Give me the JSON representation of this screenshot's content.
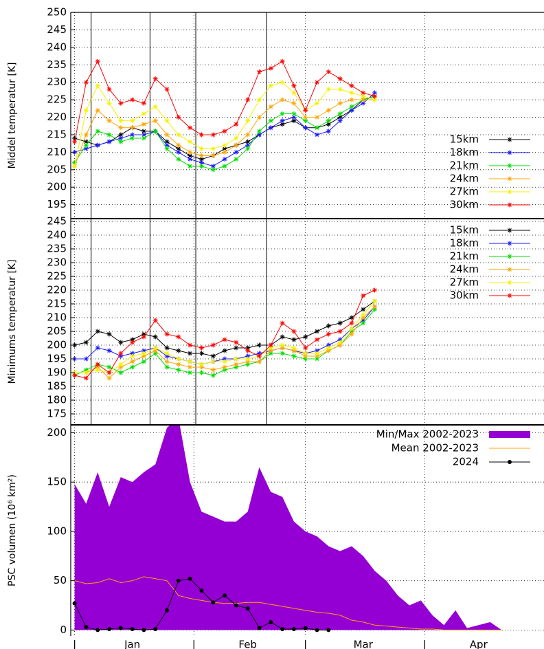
{
  "chart_data": [
    {
      "type": "line",
      "y_label": "Middel temperatur [K]",
      "xlim": [
        -1,
        122
      ],
      "xgrid": [
        0,
        31,
        60,
        91
      ],
      "vlines": [
        4.3,
        19.6,
        31.5,
        49.9
      ],
      "ylim": [
        191,
        250
      ],
      "yticks": [
        195,
        200,
        205,
        210,
        215,
        220,
        225,
        230,
        235,
        240,
        245,
        250
      ],
      "grid": true,
      "legend": "lower right",
      "x": [
        0,
        3,
        6,
        9,
        12,
        15,
        18,
        21,
        24,
        27,
        30,
        33,
        36,
        39,
        42,
        45,
        48,
        51,
        54,
        57,
        60,
        63,
        66,
        69,
        72,
        75,
        78
      ],
      "series": [
        {
          "name": "15km",
          "color": "#000000",
          "values": [
            214,
            213,
            212,
            213,
            215,
            217,
            216,
            216,
            213,
            211,
            209,
            208,
            209,
            211,
            212,
            213,
            215,
            217,
            218,
            219,
            217,
            217,
            218,
            220,
            222,
            225,
            226
          ]
        },
        {
          "name": "18km",
          "color": "#1a1aff",
          "values": [
            210,
            211,
            212,
            213,
            214,
            215,
            215,
            216,
            212,
            210,
            208,
            207,
            206,
            208,
            210,
            212,
            215,
            217,
            219,
            220,
            217,
            215,
            216,
            219,
            222,
            224,
            227
          ]
        },
        {
          "name": "21km",
          "color": "#00dd00",
          "values": [
            207,
            212,
            216,
            215,
            213,
            214,
            214,
            216,
            211,
            208,
            206,
            206,
            205,
            206,
            208,
            211,
            216,
            219,
            221,
            221,
            219,
            217,
            219,
            221,
            223,
            225,
            226
          ]
        },
        {
          "name": "24km",
          "color": "#ffa500",
          "values": [
            206,
            215,
            222,
            219,
            217,
            217,
            218,
            219,
            215,
            212,
            210,
            209,
            209,
            210,
            212,
            215,
            220,
            223,
            225,
            224,
            220,
            220,
            222,
            224,
            225,
            225,
            225
          ]
        },
        {
          "name": "27km",
          "color": "#f2f200",
          "values": [
            206,
            222,
            229,
            224,
            219,
            219,
            221,
            223,
            219,
            215,
            213,
            211,
            211,
            212,
            214,
            219,
            225,
            229,
            230,
            227,
            222,
            224,
            228,
            228,
            227,
            226,
            225
          ]
        },
        {
          "name": "30km",
          "color": "#ff0000",
          "values": [
            213,
            230,
            236,
            228,
            224,
            225,
            224,
            231,
            228,
            220,
            217,
            215,
            215,
            216,
            218,
            225,
            233,
            234,
            236,
            229,
            222,
            230,
            233,
            231,
            229,
            227,
            226
          ]
        }
      ]
    },
    {
      "type": "line",
      "y_label": "Minimums temperatur [K]",
      "xlim": [
        -1,
        122
      ],
      "xgrid": [
        0,
        31,
        60,
        91
      ],
      "vlines": [
        4.3,
        19.6,
        31.5,
        49.9
      ],
      "ylim": [
        171,
        246
      ],
      "yticks": [
        175,
        180,
        185,
        190,
        195,
        200,
        205,
        210,
        215,
        220,
        225,
        230,
        235,
        240,
        245
      ],
      "grid": true,
      "legend": "upper right",
      "x": [
        0,
        3,
        6,
        9,
        12,
        15,
        18,
        21,
        24,
        27,
        30,
        33,
        36,
        39,
        42,
        45,
        48,
        51,
        54,
        57,
        60,
        63,
        66,
        69,
        72,
        75,
        78
      ],
      "series": [
        {
          "name": "15km",
          "color": "#000000",
          "values": [
            200,
            201,
            205,
            204,
            201,
            202,
            204,
            203,
            199,
            198,
            197,
            197,
            196,
            198,
            199,
            199,
            200,
            200,
            203,
            202,
            203,
            205,
            207,
            208,
            210,
            213,
            216
          ]
        },
        {
          "name": "18km",
          "color": "#1a1aff",
          "values": [
            195,
            195,
            199,
            198,
            196,
            197,
            198,
            199,
            196,
            195,
            194,
            193,
            194,
            195,
            195,
            196,
            197,
            198,
            199,
            198,
            197,
            198,
            200,
            202,
            206,
            209,
            214
          ]
        },
        {
          "name": "21km",
          "color": "#00dd00",
          "values": [
            189,
            191,
            193,
            192,
            190,
            192,
            194,
            197,
            192,
            191,
            190,
            190,
            189,
            191,
            192,
            193,
            194,
            197,
            197,
            196,
            195,
            195,
            198,
            200,
            205,
            208,
            213
          ]
        },
        {
          "name": "24km",
          "color": "#ffa500",
          "values": [
            190,
            190,
            192,
            188,
            192,
            194,
            196,
            198,
            194,
            193,
            192,
            192,
            191,
            192,
            193,
            194,
            194,
            198,
            199,
            198,
            196,
            196,
            198,
            200,
            204,
            210,
            214
          ]
        },
        {
          "name": "27km",
          "color": "#f2f200",
          "values": [
            190,
            190,
            191,
            190,
            193,
            196,
            197,
            199,
            197,
            195,
            194,
            193,
            194,
            194,
            195,
            195,
            196,
            199,
            200,
            199,
            197,
            197,
            199,
            201,
            206,
            211,
            216
          ]
        },
        {
          "name": "30km",
          "color": "#ff0000",
          "values": [
            189,
            188,
            193,
            190,
            197,
            201,
            203,
            209,
            204,
            203,
            200,
            199,
            200,
            202,
            201,
            198,
            196,
            200,
            208,
            205,
            199,
            202,
            204,
            205,
            208,
            218,
            220
          ]
        }
      ]
    },
    {
      "type": "area",
      "y_label": "PSC volumen (10⁶ km²)",
      "xlim": [
        -1,
        122
      ],
      "xticks": [
        {
          "value": 0,
          "label": "|"
        },
        {
          "value": 31,
          "label": "|"
        },
        {
          "value": 60,
          "label": "|"
        },
        {
          "value": 91,
          "label": "|"
        }
      ],
      "xlabels": [
        {
          "value": 15,
          "label": "Jan"
        },
        {
          "value": 45,
          "label": "Feb"
        },
        {
          "value": 75,
          "label": "Mar"
        },
        {
          "value": 105,
          "label": "Apr"
        }
      ],
      "ylim": [
        -6,
        208
      ],
      "yticks": [
        0,
        50,
        100,
        150,
        200
      ],
      "grid": true,
      "legend": "upper right",
      "series": [
        {
          "name": "Min/Max 2002-2023",
          "type": "band",
          "color": "#9400d3",
          "x": [
            0,
            3,
            6,
            9,
            12,
            15,
            18,
            21,
            24,
            27,
            30,
            33,
            36,
            39,
            42,
            45,
            48,
            51,
            54,
            57,
            60,
            63,
            66,
            69,
            72,
            75,
            78,
            81,
            84,
            87,
            90,
            93,
            96,
            99,
            102,
            105,
            108,
            111
          ],
          "low": [
            0,
            0,
            0,
            0,
            0,
            0,
            0,
            0,
            0,
            0,
            0,
            0,
            0,
            0,
            0,
            0,
            0,
            0,
            0,
            0,
            0,
            0,
            0,
            0,
            0,
            0,
            0,
            0,
            0,
            0,
            0,
            0,
            0,
            0,
            0,
            0,
            0,
            0
          ],
          "high": [
            148,
            128,
            160,
            125,
            155,
            150,
            160,
            168,
            205,
            215,
            150,
            120,
            115,
            110,
            110,
            120,
            165,
            140,
            135,
            110,
            100,
            95,
            85,
            80,
            85,
            75,
            60,
            50,
            35,
            25,
            30,
            15,
            5,
            20,
            2,
            5,
            8,
            0
          ]
        },
        {
          "name": "Mean 2002-2023",
          "color": "#ffa500",
          "x": [
            0,
            3,
            6,
            9,
            12,
            15,
            18,
            21,
            24,
            27,
            30,
            33,
            36,
            39,
            42,
            45,
            48,
            51,
            54,
            57,
            60,
            63,
            66,
            69,
            72,
            75,
            78,
            81,
            84,
            87,
            90,
            93,
            96,
            99,
            102,
            105,
            108,
            111
          ],
          "values": [
            50,
            47,
            48,
            52,
            48,
            50,
            54,
            52,
            50,
            35,
            32,
            30,
            28,
            27,
            27,
            28,
            28,
            26,
            24,
            22,
            20,
            18,
            17,
            15,
            10,
            8,
            5,
            4,
            3,
            2,
            1,
            1,
            0,
            0,
            0,
            0,
            0,
            0
          ]
        },
        {
          "name": "2024",
          "color": "#000000",
          "marker": "circle",
          "x": [
            0,
            3,
            6,
            9,
            12,
            15,
            18,
            21,
            24,
            27,
            30,
            33,
            36,
            39,
            42,
            45,
            48,
            51,
            54,
            57,
            60,
            63,
            66
          ],
          "values": [
            27,
            3,
            0,
            1,
            2,
            1,
            0,
            1,
            20,
            50,
            52,
            40,
            28,
            35,
            25,
            22,
            2,
            8,
            1,
            1,
            2,
            0,
            0
          ]
        }
      ]
    }
  ]
}
